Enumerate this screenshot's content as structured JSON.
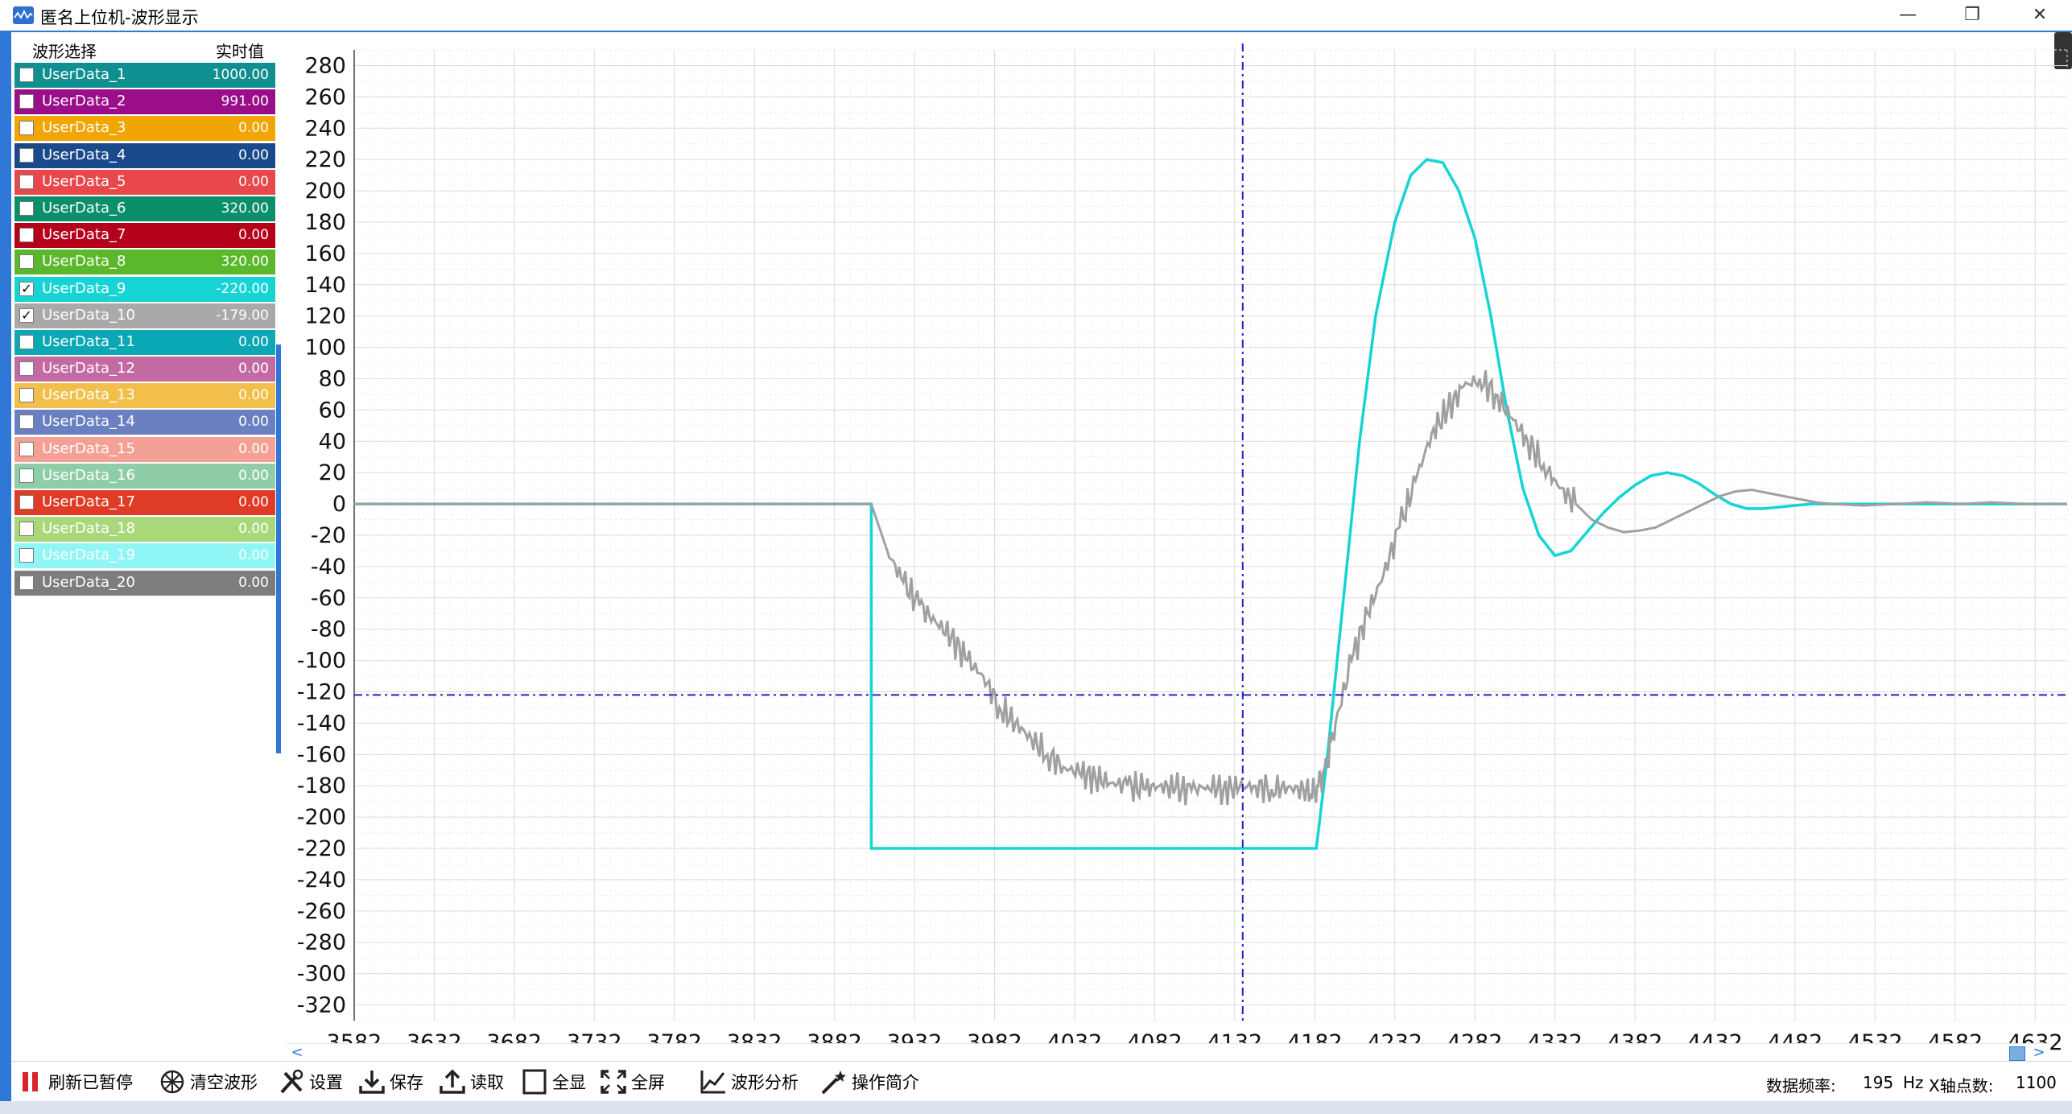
{
  "window": {
    "title": "匿名上位机-波形显示",
    "minimize": "—",
    "restore": "❐",
    "close": "✕"
  },
  "sidebar": {
    "header_select": "波形选择",
    "header_value": "实时值",
    "items": [
      {
        "label": "UserData_1",
        "value": "1000.00",
        "color": "#0f8f8f",
        "checked": false
      },
      {
        "label": "UserData_2",
        "value": "991.00",
        "color": "#9a0e8a",
        "checked": false
      },
      {
        "label": "UserData_3",
        "value": "0.00",
        "color": "#f0a500",
        "checked": false
      },
      {
        "label": "UserData_4",
        "value": "0.00",
        "color": "#1b4a8c",
        "checked": false
      },
      {
        "label": "UserData_5",
        "value": "0.00",
        "color": "#e8474b",
        "checked": false
      },
      {
        "label": "UserData_6",
        "value": "320.00",
        "color": "#0a8f6a",
        "checked": false
      },
      {
        "label": "UserData_7",
        "value": "0.00",
        "color": "#b5001c",
        "checked": false
      },
      {
        "label": "UserData_8",
        "value": "320.00",
        "color": "#5bb82a",
        "checked": false
      },
      {
        "label": "UserData_9",
        "value": "-220.00",
        "color": "#17d4d4",
        "checked": true
      },
      {
        "label": "UserData_10",
        "value": "-179.00",
        "color": "#a9a9a9",
        "checked": true
      },
      {
        "label": "UserData_11",
        "value": "0.00",
        "color": "#0aa7b5",
        "checked": false
      },
      {
        "label": "UserData_12",
        "value": "0.00",
        "color": "#c36aa3",
        "checked": false
      },
      {
        "label": "UserData_13",
        "value": "0.00",
        "color": "#f2c04a",
        "checked": false
      },
      {
        "label": "UserData_14",
        "value": "0.00",
        "color": "#6b80c0",
        "checked": false
      },
      {
        "label": "UserData_15",
        "value": "0.00",
        "color": "#f4a095",
        "checked": false
      },
      {
        "label": "UserData_16",
        "value": "0.00",
        "color": "#8fcca8",
        "checked": false
      },
      {
        "label": "UserData_17",
        "value": "0.00",
        "color": "#e03b26",
        "checked": false
      },
      {
        "label": "UserData_18",
        "value": "0.00",
        "color": "#a9d87a",
        "checked": false
      },
      {
        "label": "UserData_19",
        "value": "0.00",
        "color": "#8ff5f5",
        "checked": false
      },
      {
        "label": "UserData_20",
        "value": "0.00",
        "color": "#7d7d7d",
        "checked": false
      }
    ]
  },
  "toolbar": {
    "refresh_label": "刷新已暂停",
    "clear_label": "清空波形",
    "settings_label": "设置",
    "save_label": "保存",
    "read_label": "读取",
    "fit_label": "全显",
    "fullscreen_label": "全屏",
    "analysis_label": "波形分析",
    "help_label": "操作简介"
  },
  "status": {
    "rate_label": "数据频率:",
    "rate_value": "195",
    "rate_unit": "Hz",
    "points_label": "X轴点数:",
    "points_value": "1100"
  },
  "scroll": {
    "left_arrow": "<",
    "right_arrow": ">"
  },
  "chart_data": {
    "type": "line",
    "ylim": [
      -330,
      290
    ],
    "xlim": [
      3582,
      4652
    ],
    "yticks": [
      "280",
      "260",
      "240",
      "220",
      "200",
      "180",
      "160",
      "140",
      "120",
      "100",
      "80",
      "60",
      "40",
      "20",
      "0",
      "-20",
      "-40",
      "-60",
      "-80",
      "-100",
      "-120",
      "-140",
      "-160",
      "-180",
      "-200",
      "-220",
      "-240",
      "-260",
      "-280",
      "-300",
      "-320"
    ],
    "xticks": [
      "3582",
      "3632",
      "3682",
      "3732",
      "3782",
      "3832",
      "3882",
      "3932",
      "3982",
      "4032",
      "4082",
      "4132",
      "4182",
      "4232",
      "4282",
      "4332",
      "4382",
      "4432",
      "4482",
      "4532",
      "4582",
      "4632",
      "46"
    ],
    "cursor": {
      "x": 4137,
      "y": -122,
      "color": "#1f1fcc"
    },
    "grid": true,
    "series": [
      {
        "name": "UserData_9",
        "color": "#17d4d4",
        "x": [
          3582,
          3905,
          3905,
          4183,
          4190,
          4200,
          4210,
          4220,
          4232,
          4242,
          4252,
          4262,
          4272,
          4282,
          4292,
          4302,
          4312,
          4322,
          4332,
          4342,
          4352,
          4362,
          4372,
          4382,
          4392,
          4402,
          4412,
          4422,
          4432,
          4442,
          4452,
          4462,
          4472,
          4482,
          4492,
          4502,
          4512,
          4532,
          4552,
          4582,
          4652
        ],
        "values": [
          0,
          0,
          -220,
          -220,
          -160,
          -60,
          40,
          120,
          180,
          210,
          220,
          218,
          200,
          170,
          120,
          60,
          10,
          -20,
          -33,
          -30,
          -18,
          -6,
          4,
          12,
          18,
          20,
          18,
          13,
          6,
          0,
          -3,
          -3,
          -2,
          -1,
          0,
          0,
          0,
          0,
          0,
          0,
          0
        ]
      },
      {
        "name": "UserData_10",
        "color": "#a0a0a0",
        "x": [
          3582,
          3905,
          3915,
          3925,
          3935,
          3945,
          3955,
          3965,
          3975,
          3985,
          3995,
          4005,
          4015,
          4025,
          4035,
          4045,
          4055,
          4065,
          4075,
          4085,
          4095,
          4105,
          4115,
          4125,
          4135,
          4145,
          4155,
          4165,
          4175,
          4182,
          4188,
          4195,
          4205,
          4215,
          4225,
          4235,
          4245,
          4255,
          4265,
          4275,
          4285,
          4295,
          4305,
          4315,
          4325,
          4335,
          4345,
          4355,
          4365,
          4375,
          4385,
          4395,
          4405,
          4415,
          4425,
          4435,
          4445,
          4455,
          4465,
          4475,
          4485,
          4495,
          4505,
          4525,
          4545,
          4565,
          4585,
          4605,
          4625,
          4652
        ],
        "values": [
          0,
          0,
          -30,
          -50,
          -65,
          -75,
          -85,
          -100,
          -110,
          -130,
          -140,
          -150,
          -160,
          -168,
          -172,
          -175,
          -178,
          -180,
          -182,
          -180,
          -182,
          -183,
          -180,
          -182,
          -181,
          -180,
          -182,
          -181,
          -183,
          -185,
          -170,
          -140,
          -100,
          -70,
          -45,
          -15,
          15,
          45,
          60,
          75,
          80,
          70,
          55,
          40,
          25,
          10,
          0,
          -10,
          -15,
          -18,
          -17,
          -15,
          -10,
          -5,
          0,
          5,
          8,
          9,
          7,
          5,
          3,
          1,
          0,
          -1,
          0,
          1,
          0,
          1,
          0,
          0
        ]
      }
    ]
  }
}
